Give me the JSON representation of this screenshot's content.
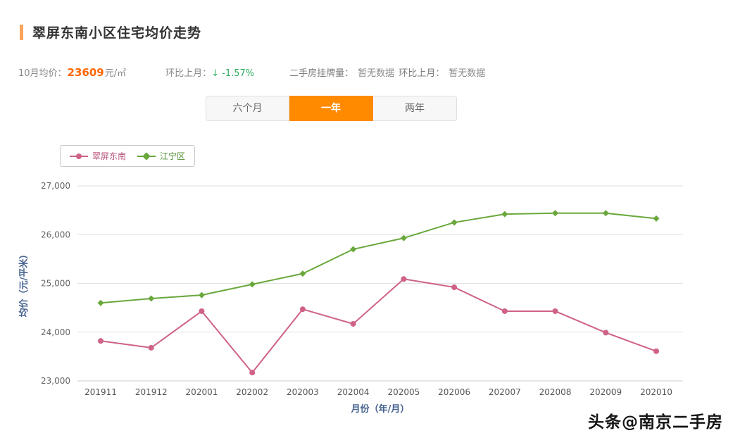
{
  "header": {
    "title": "翠屏东南小区住宅均价走势"
  },
  "stats": {
    "month_label": "10月均价：",
    "price": "23609",
    "price_unit": "元/㎡",
    "mom_label": "环比上月：",
    "mom_value": "↓ -1.57%",
    "listing_label": "二手房挂牌量：",
    "listing_value": "暂无数据",
    "listing_mom_label": "环比上月：",
    "listing_mom_value": "暂无数据"
  },
  "tabs": [
    {
      "label": "六个月",
      "active": false
    },
    {
      "label": "一年",
      "active": true
    },
    {
      "label": "两年",
      "active": false
    }
  ],
  "legend": [
    {
      "label": "翠屏东南",
      "color": "#cf6287"
    },
    {
      "label": "江宁区",
      "color": "#69a83c"
    }
  ],
  "watermark": "头条@南京二手房",
  "colors": {
    "accent_orange": "#ff8a00",
    "price_orange": "#ff6600",
    "change_green": "#2eae60",
    "title_marker": "#f9a45c",
    "grid": "#e2e2e2",
    "axis_name_blue": "#44618f"
  },
  "chart_data": {
    "type": "line",
    "title": "翠屏东南小区住宅均价走势",
    "xlabel": "月份（年/月）",
    "ylabel": "均价（元/平米）",
    "categories": [
      "201911",
      "201912",
      "202001",
      "202002",
      "202003",
      "202004",
      "202005",
      "202006",
      "202007",
      "202008",
      "202009",
      "202010"
    ],
    "series": [
      {
        "name": "翠屏东南",
        "color": "#cf6287",
        "marker": "circle",
        "values": [
          23820,
          23680,
          24430,
          23170,
          24470,
          24170,
          25090,
          24920,
          24430,
          24430,
          23990,
          23609
        ]
      },
      {
        "name": "江宁区",
        "color": "#69a83c",
        "marker": "diamond",
        "values": [
          24600,
          24690,
          24760,
          24980,
          25200,
          25700,
          25930,
          26250,
          26420,
          26440,
          26440,
          26330
        ]
      }
    ],
    "ylim": [
      23000,
      27000
    ],
    "yticks": [
      23000,
      24000,
      25000,
      26000,
      27000
    ],
    "grid": true,
    "legend_position": "top-left"
  }
}
